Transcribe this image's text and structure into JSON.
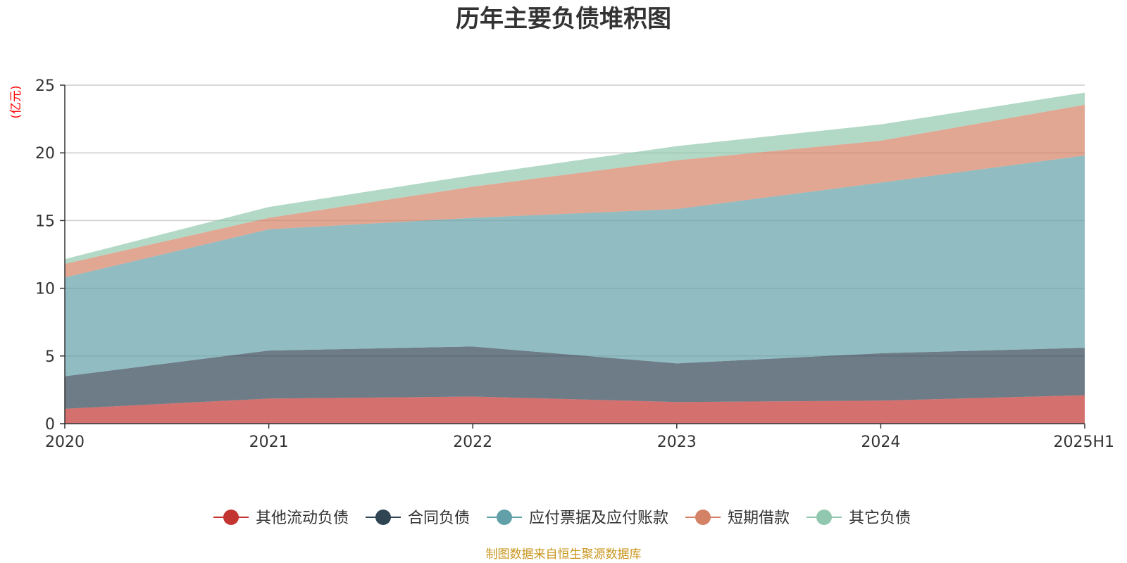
{
  "chart_data": {
    "type": "area",
    "stacked": true,
    "title": "历年主要负债堆积图",
    "unit_label": "(亿元)",
    "x": [
      "2020",
      "2021",
      "2022",
      "2023",
      "2024",
      "2025H1"
    ],
    "ylim": [
      0,
      25
    ],
    "yticks": [
      "0",
      "5",
      "10",
      "15",
      "20",
      "25"
    ],
    "grid": true,
    "legend_position": "bottom",
    "series": [
      {
        "name": "其他流动负债",
        "color": "#c23531",
        "values": [
          1.1,
          1.85,
          2.0,
          1.6,
          1.7,
          2.1
        ]
      },
      {
        "name": "合同负债",
        "color": "#2f4554",
        "values": [
          2.4,
          3.55,
          3.7,
          2.85,
          3.5,
          3.5
        ]
      },
      {
        "name": "应付票据及应付账款",
        "color": "#61a0a8",
        "values": [
          7.3,
          8.95,
          9.5,
          11.4,
          12.6,
          14.2
        ]
      },
      {
        "name": "短期借款",
        "color": "#d48265",
        "values": [
          1.0,
          0.85,
          2.3,
          3.6,
          3.1,
          3.75
        ]
      },
      {
        "name": "其它负债",
        "color": "#91c7ae",
        "values": [
          0.35,
          0.8,
          0.85,
          1.05,
          1.2,
          0.9
        ]
      }
    ]
  },
  "footer": {
    "source": "制图数据来自恒生聚源数据库"
  }
}
